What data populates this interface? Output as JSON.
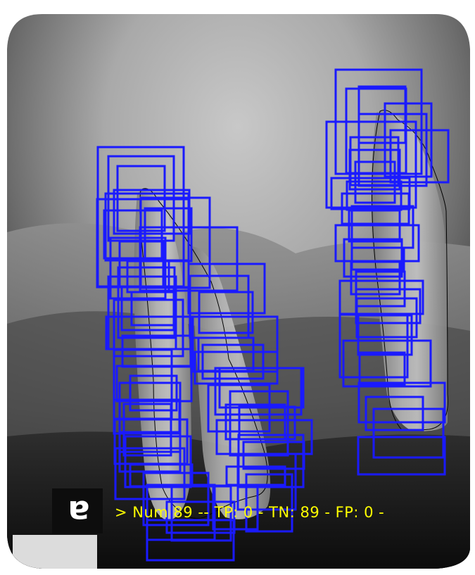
{
  "image": {
    "subject": "dental-periapical-radiograph",
    "film_orientation_mark": "a",
    "overlay": {
      "stats_text": "> Num 89 -- TP: 0 - TN: 89 - FP: 0 -",
      "text_color": "#ffff00"
    },
    "detections": {
      "box_color": "#1a1aff"
    },
    "colors": {
      "film_border": "#ffffff",
      "outline_color": "#000000"
    }
  }
}
